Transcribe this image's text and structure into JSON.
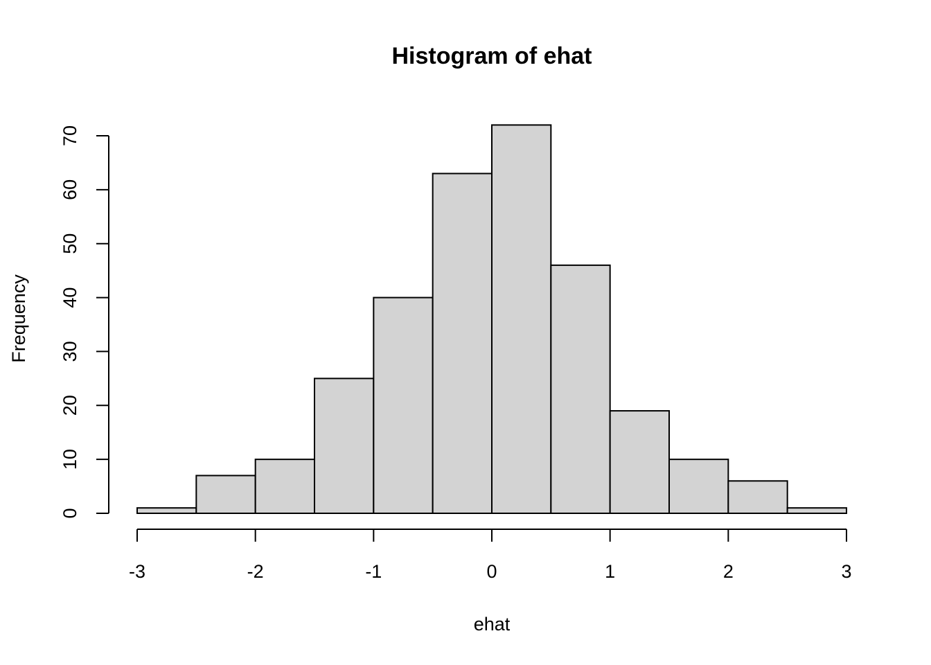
{
  "chart_data": {
    "type": "bar",
    "variant": "histogram",
    "title": "Histogram of ehat",
    "xlabel": "ehat",
    "ylabel": "Frequency",
    "bins": [
      {
        "start": -3.0,
        "end": -2.5,
        "count": 1
      },
      {
        "start": -2.5,
        "end": -2.0,
        "count": 7
      },
      {
        "start": -2.0,
        "end": -1.5,
        "count": 10
      },
      {
        "start": -1.5,
        "end": -1.0,
        "count": 25
      },
      {
        "start": -1.0,
        "end": -0.5,
        "count": 40
      },
      {
        "start": -0.5,
        "end": 0.0,
        "count": 63
      },
      {
        "start": 0.0,
        "end": 0.5,
        "count": 72
      },
      {
        "start": 0.5,
        "end": 1.0,
        "count": 46
      },
      {
        "start": 1.0,
        "end": 1.5,
        "count": 19
      },
      {
        "start": 1.5,
        "end": 2.0,
        "count": 10
      },
      {
        "start": 2.0,
        "end": 2.5,
        "count": 6
      },
      {
        "start": 2.5,
        "end": 3.0,
        "count": 1
      }
    ],
    "xticks": [
      -3,
      -2,
      -1,
      0,
      1,
      2,
      3
    ],
    "xtick_labels": [
      "-3",
      "-2",
      "-1",
      "0",
      "1",
      "2",
      "3"
    ],
    "yticks": [
      0,
      10,
      20,
      30,
      40,
      50,
      60,
      70
    ],
    "ytick_labels": [
      "0",
      "10",
      "20",
      "30",
      "40",
      "50",
      "60",
      "70"
    ],
    "xlim": [
      -3,
      3
    ],
    "ylim": [
      0,
      70
    ],
    "grid": false,
    "legend": "none",
    "bar_fill": "#d3d3d3",
    "bar_stroke": "#000000"
  }
}
